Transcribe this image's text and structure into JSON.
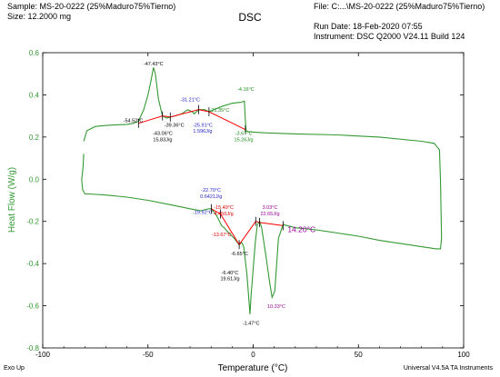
{
  "header": {
    "sample": "Sample: MS-20-0222 (25%Maduro75%Tierno)",
    "size": "Size:  12.2000 mg",
    "file": "File: C:...\\MS-20-0222 (25%Maduro75%Tierno)",
    "run_date": "Run Date: 18-Feb-2020 07:55",
    "instrument": "Instrument: DSC Q2000 V24.11 Build 124"
  },
  "footer": {
    "exo_up": "Exo Up",
    "software": "Universal V4.5A TA Instruments"
  },
  "colors": {
    "trace": "#339933",
    "construction": "#ff0000",
    "label_black": "#000000",
    "label_blue": "#2222cc",
    "label_green": "#1a8c1a",
    "label_red": "#dd0000",
    "label_purple": "#990099"
  },
  "chart_data": {
    "type": "line",
    "title": "DSC",
    "xlabel": "Temperature (°C)",
    "ylabel": "Heat Flow (W/g)",
    "xlim": [
      -100,
      100
    ],
    "ylim": [
      -0.8,
      0.6
    ],
    "xticks": [
      -100,
      -50,
      0,
      50,
      100
    ],
    "yticks": [
      -0.8,
      -0.6,
      -0.4,
      -0.2,
      0.0,
      0.2,
      0.4,
      0.6
    ],
    "grid": false,
    "series": [
      {
        "name": "",
        "x": [
          -80.5,
          -79,
          -75,
          -70,
          -65,
          -60,
          -57,
          -54.5,
          -52,
          -50,
          -48.5,
          -47.4,
          -46.5,
          -45,
          -43.1,
          -41,
          -39.4,
          -37,
          -34,
          -31.2,
          -29,
          -28,
          -25.9,
          -23,
          -21,
          -15,
          -10,
          -6,
          -4.2,
          -3.7,
          -3.4,
          -2,
          5,
          20,
          40,
          60,
          80,
          86,
          88.5,
          89,
          89.5,
          89,
          87,
          80,
          70,
          60,
          50,
          40,
          30,
          20,
          14.2,
          12,
          10.3,
          9,
          8,
          6,
          4,
          3.1,
          2,
          1,
          -1,
          -1.5,
          -3,
          -4.5,
          -5.5,
          -6.65,
          -7.5,
          -9,
          -11,
          -13,
          -13.7,
          -15,
          -17.5,
          -19.9,
          -21,
          -23,
          -25,
          -30,
          -40,
          -50,
          -60,
          -70,
          -78,
          -80,
          -81,
          -81.5,
          -81.2,
          -80.8,
          -80.5
        ],
        "y": [
          0.18,
          0.23,
          0.25,
          0.255,
          0.258,
          0.26,
          0.265,
          0.275,
          0.33,
          0.4,
          0.47,
          0.53,
          0.5,
          0.38,
          0.3,
          0.29,
          0.295,
          0.3,
          0.31,
          0.33,
          0.32,
          0.31,
          0.33,
          0.33,
          0.32,
          0.345,
          0.36,
          0.365,
          0.37,
          0.28,
          0.23,
          0.225,
          0.22,
          0.215,
          0.21,
          0.2,
          0.18,
          0.17,
          0.14,
          0.0,
          -0.28,
          -0.33,
          -0.33,
          -0.32,
          -0.305,
          -0.29,
          -0.27,
          -0.255,
          -0.24,
          -0.23,
          -0.215,
          -0.28,
          -0.53,
          -0.56,
          -0.5,
          -0.36,
          -0.23,
          -0.2,
          -0.215,
          -0.3,
          -0.55,
          -0.64,
          -0.45,
          -0.32,
          -0.3,
          -0.31,
          -0.3,
          -0.28,
          -0.26,
          -0.24,
          -0.23,
          -0.22,
          -0.17,
          -0.14,
          -0.14,
          -0.145,
          -0.15,
          -0.14,
          -0.12,
          -0.1,
          -0.085,
          -0.075,
          -0.07,
          -0.07,
          -0.05,
          0.0,
          0.02,
          0.06,
          0.12
        ]
      }
    ],
    "construction_lines": [
      {
        "x": [
          -54.5,
          -43.1,
          -39.4,
          -25.9,
          -21,
          -3.7
        ],
        "y": [
          0.265,
          0.3,
          0.295,
          0.33,
          0.32,
          0.235
        ]
      },
      {
        "x": [
          -19.9,
          -15.5,
          -6.65,
          1.2,
          3.03,
          14.2
        ],
        "y": [
          -0.14,
          -0.165,
          -0.31,
          -0.2,
          -0.205,
          -0.22
        ]
      }
    ],
    "annotations": [
      {
        "text": "-47.43°C",
        "x": -47.4,
        "y": 0.54,
        "color": "black"
      },
      {
        "text": "-54.52°C",
        "x": -57,
        "y": 0.27,
        "color": "black"
      },
      {
        "text": "-43.06°C",
        "x": -43,
        "y": 0.21,
        "color": "black"
      },
      {
        "text": "15.83J/g",
        "x": -43,
        "y": 0.18,
        "color": "black"
      },
      {
        "text": "-39.36°C",
        "x": -37.5,
        "y": 0.25,
        "color": "black"
      },
      {
        "text": "-31.21°C",
        "x": -30,
        "y": 0.37,
        "color": "blue"
      },
      {
        "text": "-25.91°C",
        "x": -24,
        "y": 0.25,
        "color": "blue"
      },
      {
        "text": "1.596J/g",
        "x": -24,
        "y": 0.22,
        "color": "blue"
      },
      {
        "text": "-21.35°C",
        "x": -16,
        "y": 0.32,
        "color": "green"
      },
      {
        "text": "-4.16°C",
        "x": -3.5,
        "y": 0.42,
        "color": "green"
      },
      {
        "text": "-3.67°C",
        "x": -4.5,
        "y": 0.21,
        "color": "green"
      },
      {
        "text": "15.26J/g",
        "x": -4.5,
        "y": 0.18,
        "color": "green"
      },
      {
        "text": "-22.70°C",
        "x": -20,
        "y": -0.06,
        "color": "blue"
      },
      {
        "text": "0.6421J/g",
        "x": -20,
        "y": -0.09,
        "color": "blue"
      },
      {
        "text": "-19.92°C",
        "x": -24,
        "y": -0.165,
        "color": "blue"
      },
      {
        "text": "-15.49°C",
        "x": -14,
        "y": -0.14,
        "color": "red"
      },
      {
        "text": "4.450J/g",
        "x": -14,
        "y": -0.17,
        "color": "red"
      },
      {
        "text": "-13.67°C",
        "x": -15,
        "y": -0.27,
        "color": "red"
      },
      {
        "text": "3.03°C",
        "x": 8,
        "y": -0.14,
        "color": "purple"
      },
      {
        "text": "22.65J/g",
        "x": 8,
        "y": -0.17,
        "color": "purple"
      },
      {
        "text": "14.20°C",
        "x": 23,
        "y": -0.25,
        "color": "purple"
      },
      {
        "text": "-6.65°C",
        "x": -6.5,
        "y": -0.36,
        "color": "black"
      },
      {
        "text": "-6.40°C",
        "x": -11,
        "y": -0.45,
        "color": "black"
      },
      {
        "text": "19.61J/g",
        "x": -11,
        "y": -0.48,
        "color": "black"
      },
      {
        "text": "10.33°C",
        "x": 11,
        "y": -0.61,
        "color": "purple"
      },
      {
        "text": "-1.47°C",
        "x": -1,
        "y": -0.69,
        "color": "black"
      }
    ],
    "legend": "none"
  }
}
